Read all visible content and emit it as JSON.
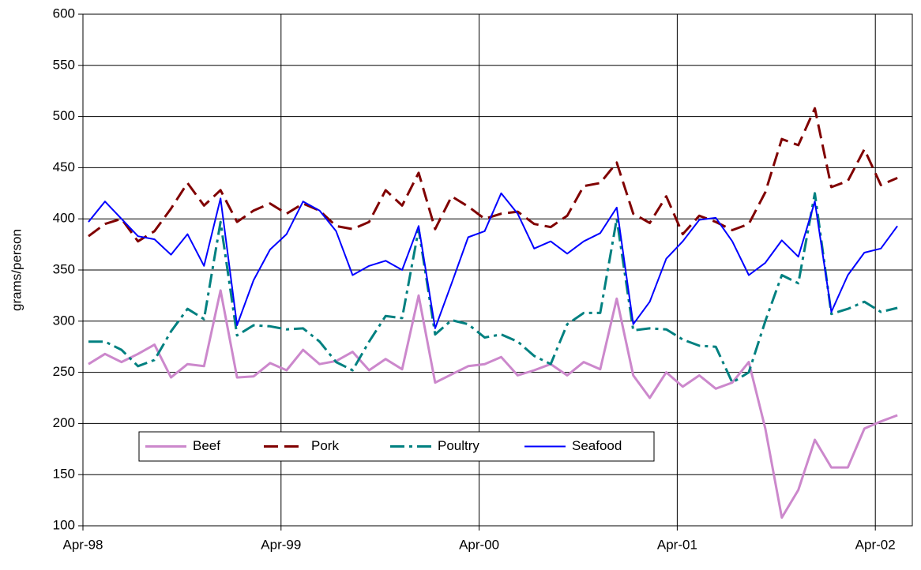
{
  "chart_data": {
    "type": "line",
    "y_label": "grams/person",
    "categories": [
      "Apr-98",
      null,
      null,
      null,
      null,
      null,
      null,
      null,
      null,
      null,
      null,
      null,
      "Apr-99",
      null,
      null,
      null,
      null,
      null,
      null,
      null,
      null,
      null,
      null,
      null,
      "Apr-00",
      null,
      null,
      null,
      null,
      null,
      null,
      null,
      null,
      null,
      null,
      null,
      "Apr-01",
      null,
      null,
      null,
      null,
      null,
      null,
      null,
      null,
      null,
      null,
      null,
      "Apr-02",
      null
    ],
    "series": [
      {
        "name": "Beef",
        "color": "#cc88cc",
        "dash": "solid",
        "width": 3,
        "values": [
          258,
          268,
          260,
          268,
          277,
          245,
          258,
          256,
          330,
          245,
          246,
          259,
          252,
          272,
          258,
          261,
          270,
          252,
          263,
          253,
          325,
          240,
          248,
          256,
          258,
          265,
          247,
          252,
          258,
          247,
          260,
          253,
          322,
          247,
          225,
          250,
          236,
          247,
          234,
          240,
          260,
          195,
          108,
          135,
          184,
          157,
          157,
          195,
          202,
          208
        ]
      },
      {
        "name": "Pork",
        "color": "#800000",
        "dash": "dashed",
        "width": 3,
        "values": [
          383,
          395,
          400,
          378,
          388,
          410,
          435,
          413,
          428,
          397,
          408,
          415,
          405,
          415,
          408,
          393,
          390,
          397,
          428,
          413,
          445,
          390,
          422,
          412,
          400,
          405,
          407,
          395,
          392,
          403,
          432,
          435,
          455,
          405,
          396,
          422,
          385,
          403,
          397,
          389,
          395,
          426,
          478,
          472,
          508,
          431,
          437,
          468,
          433,
          440
        ]
      },
      {
        "name": "Poultry",
        "color": "#008080",
        "dash": "dashdot",
        "width": 3,
        "values": [
          280,
          280,
          272,
          256,
          262,
          290,
          312,
          302,
          397,
          286,
          296,
          295,
          292,
          293,
          280,
          260,
          252,
          280,
          305,
          303,
          390,
          287,
          301,
          297,
          284,
          287,
          280,
          266,
          258,
          297,
          308,
          308,
          400,
          291,
          293,
          292,
          282,
          276,
          275,
          240,
          250,
          300,
          345,
          337,
          425,
          307,
          312,
          319,
          309,
          313
        ]
      },
      {
        "name": "Seafood",
        "color": "#0000ff",
        "dash": "solid",
        "width": 2,
        "values": [
          397,
          417,
          400,
          383,
          380,
          365,
          385,
          354,
          420,
          296,
          340,
          370,
          385,
          417,
          408,
          388,
          345,
          354,
          359,
          350,
          393,
          293,
          337,
          382,
          388,
          425,
          405,
          371,
          378,
          366,
          378,
          386,
          411,
          297,
          319,
          361,
          378,
          399,
          401,
          378,
          345,
          357,
          379,
          363,
          417,
          309,
          345,
          367,
          371,
          393
        ]
      }
    ],
    "ylim": [
      100,
      600
    ],
    "yticks": [
      100,
      150,
      200,
      250,
      300,
      350,
      400,
      450,
      500,
      550,
      600
    ],
    "grid": true,
    "legend": "lower-left"
  }
}
